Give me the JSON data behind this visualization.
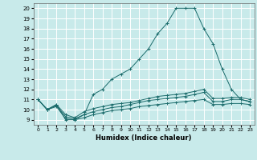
{
  "xlabel": "Humidex (Indice chaleur)",
  "bg_color": "#c8eaea",
  "grid_color": "#ffffff",
  "line_color": "#1a6b6b",
  "xlim": [
    -0.5,
    23.5
  ],
  "ylim": [
    8.5,
    20.5
  ],
  "xticks": [
    0,
    1,
    2,
    3,
    4,
    5,
    6,
    7,
    8,
    9,
    10,
    11,
    12,
    13,
    14,
    15,
    16,
    17,
    18,
    19,
    20,
    21,
    22,
    23
  ],
  "yticks": [
    9,
    10,
    11,
    12,
    13,
    14,
    15,
    16,
    17,
    18,
    19,
    20
  ],
  "line1_x": [
    0,
    1,
    2,
    3,
    4,
    5,
    6,
    7,
    8,
    9,
    10,
    11,
    12,
    13,
    14,
    15,
    16,
    17,
    18,
    19,
    20,
    21,
    22,
    23
  ],
  "line1_y": [
    11,
    10,
    10.5,
    9,
    9,
    9.5,
    11.5,
    12,
    13,
    13.5,
    14,
    15,
    16,
    17.5,
    18.5,
    20,
    20,
    20,
    18,
    16.5,
    14,
    12,
    11,
    10.8
  ],
  "line2_x": [
    0,
    1,
    2,
    3,
    4,
    5,
    6,
    7,
    8,
    9,
    10,
    11,
    12,
    13,
    14,
    15,
    16,
    17,
    18,
    19,
    20,
    21,
    22,
    23
  ],
  "line2_y": [
    11,
    10,
    10.5,
    9.5,
    9.2,
    9.8,
    10.1,
    10.3,
    10.5,
    10.6,
    10.7,
    10.9,
    11.1,
    11.3,
    11.4,
    11.5,
    11.6,
    11.8,
    12.0,
    11.1,
    11.1,
    11.2,
    11.2,
    11.0
  ],
  "line3_x": [
    0,
    1,
    2,
    3,
    4,
    5,
    6,
    7,
    8,
    9,
    10,
    11,
    12,
    13,
    14,
    15,
    16,
    17,
    18,
    19,
    20,
    21,
    22,
    23
  ],
  "line3_y": [
    11,
    10,
    10.4,
    9.3,
    9.1,
    9.5,
    9.8,
    10.0,
    10.2,
    10.3,
    10.5,
    10.7,
    10.9,
    11.0,
    11.1,
    11.2,
    11.3,
    11.5,
    11.7,
    10.8,
    10.8,
    11.0,
    11.0,
    10.8
  ],
  "line4_x": [
    0,
    1,
    2,
    3,
    4,
    5,
    6,
    7,
    8,
    9,
    10,
    11,
    12,
    13,
    14,
    15,
    16,
    17,
    18,
    19,
    20,
    21,
    22,
    23
  ],
  "line4_y": [
    11,
    10,
    10.3,
    9.1,
    9.0,
    9.2,
    9.5,
    9.7,
    9.9,
    10.0,
    10.1,
    10.3,
    10.4,
    10.5,
    10.6,
    10.7,
    10.8,
    10.9,
    11.0,
    10.5,
    10.5,
    10.6,
    10.6,
    10.5
  ]
}
